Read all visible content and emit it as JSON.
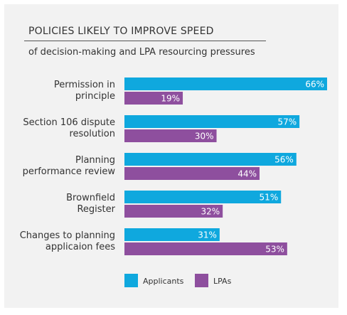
{
  "chart_data": {
    "type": "bar",
    "orientation": "horizontal",
    "title": "POLICIES LIKELY TO IMPROVE SPEED",
    "subtitle": "of decision-making and LPA resourcing pressures",
    "categories": [
      [
        "Permission in",
        "principle"
      ],
      [
        "Section 106 dispute",
        "resolution"
      ],
      [
        "Planning",
        "performance review"
      ],
      [
        "Brownfield",
        "Register"
      ],
      [
        "Changes to planning",
        "applicaion fees"
      ]
    ],
    "series": [
      {
        "name": "Applicants",
        "color": "#0fa8de",
        "values": [
          66,
          57,
          56,
          51,
          31
        ]
      },
      {
        "name": "LPAs",
        "color": "#8e4f9e",
        "values": [
          19,
          30,
          44,
          32,
          53
        ]
      }
    ],
    "value_suffix": "%",
    "xlim": [
      0,
      100
    ],
    "legend_position": "bottom"
  }
}
